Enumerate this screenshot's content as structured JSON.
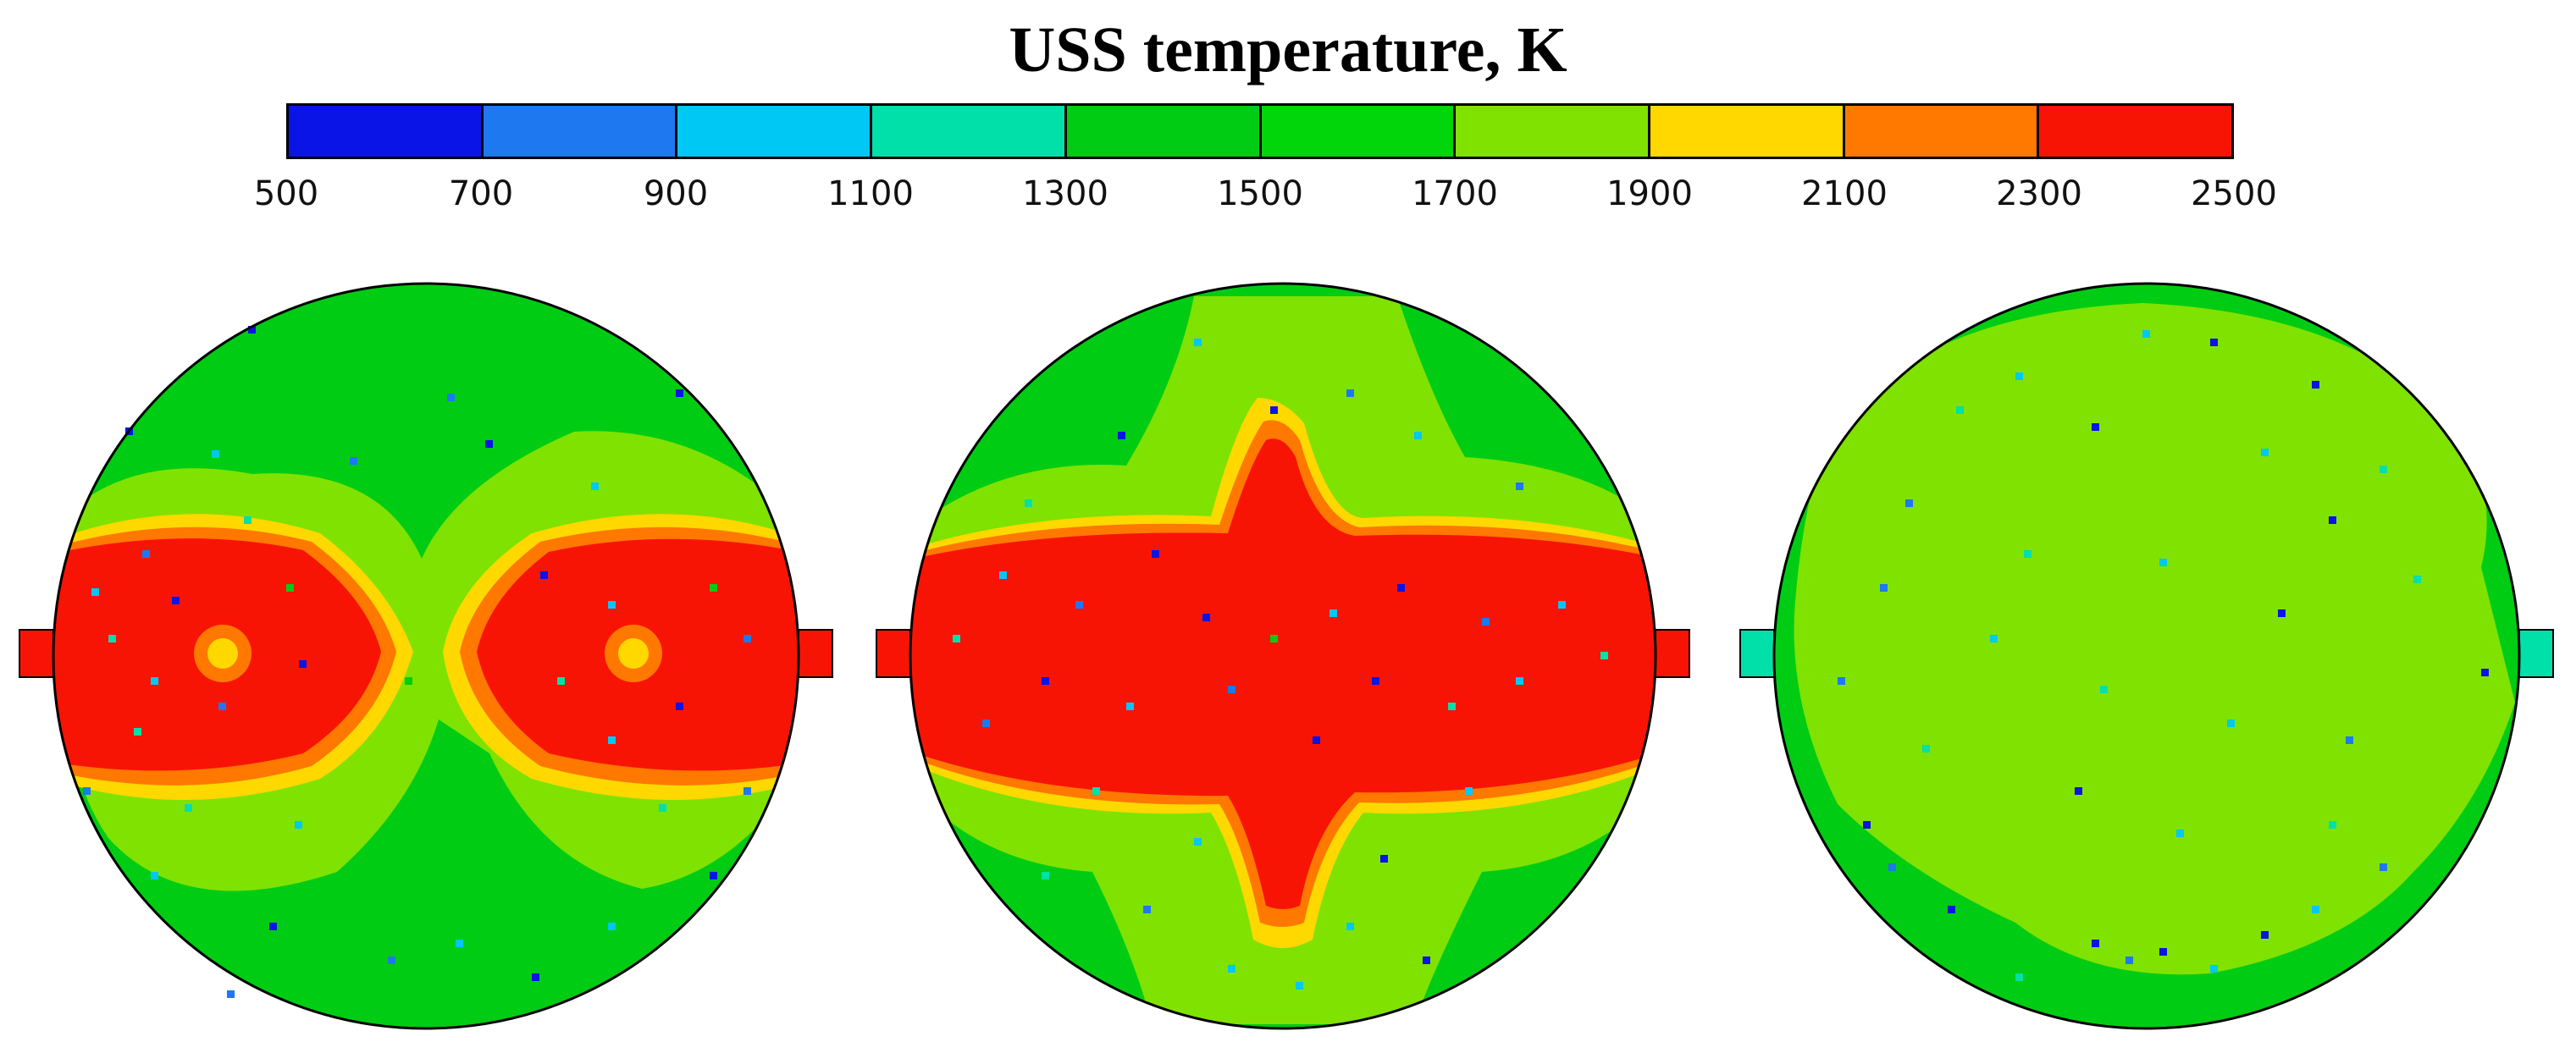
{
  "title": "USS temperature, K",
  "colorbar": {
    "ticks": [
      "500",
      "700",
      "900",
      "1100",
      "1300",
      "1500",
      "1700",
      "1900",
      "2100",
      "2300",
      "2500"
    ],
    "colors": [
      "#0a14e6",
      "#1e78f0",
      "#00c8f5",
      "#00e0a8",
      "#00cc14",
      "#00d60a",
      "#80e200",
      "#ffd800",
      "#ff7800",
      "#f81404"
    ]
  },
  "panels": [
    {
      "name": "left",
      "pattern": "two-lobe hot zones along the horizontal axis"
    },
    {
      "name": "center",
      "pattern": "single cross-shaped hot zone"
    },
    {
      "name": "right",
      "pattern": "nearly uniform moderate temperature"
    }
  ]
}
